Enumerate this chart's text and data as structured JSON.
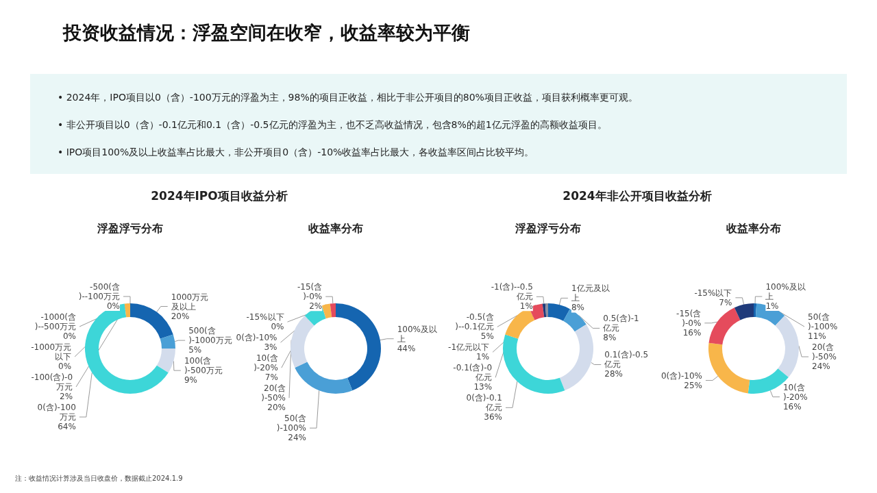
{
  "chart_data": [
    {
      "type": "other",
      "title": "投资收益情况：浮盈空间在收窄，收益率较为平衡",
      "annotations": [
        "• 2024年，IPO项目以0（含）-100万元的浮盈为主，98%的项目正收益，相比于非公开项目的80%项目正收益，项目获利概率更可观。",
        "• 非公开项目以0（含）-0.1亿元和0.1（含）-0.5亿元的浮盈为主，也不乏高收益情况，包含8%的超1亿元浮盈的高额收益项目。",
        "• IPO项目100%及以上收益率占比最大，非公开项目0（含）-10%收益率占比最大，各收益率区间占比较平均。",
        "注：收益情况计算涉及当日收盘价，数据截止2024.1.9"
      ]
    },
    {
      "type": "donut",
      "subtitle": "2024年IPO项目收益分析",
      "title": "浮盈浮亏分布",
      "categories": [
        "1000万元及以上",
        "500(含)-1000万元",
        "100(含)-500万元",
        "0(含)-100万元",
        "-100(含)-0万元",
        "-500(含)--100万元",
        "-1000(含)--500万元",
        "-1000万元以下"
      ],
      "values": [
        20,
        5,
        9,
        64,
        2,
        0,
        0,
        0
      ],
      "value_labels": [
        "20%",
        "5%",
        "9%",
        "64%",
        "2%",
        "0%",
        "0%",
        "0%"
      ],
      "colors": [
        "#1565b0",
        "#4a9fd6",
        "#d3dcec",
        "#3dd6d8",
        "#f8b64a",
        "#e54b5c",
        "#1f3a7a",
        "#8a8fa0"
      ]
    },
    {
      "type": "donut",
      "title": "收益率分布",
      "categories": [
        "100%及以上",
        "50(含)-100%",
        "20(含)-50%",
        "10(含)-20%",
        "0(含)-10%",
        "-15(含)-0%",
        "-15%以下"
      ],
      "values": [
        44,
        24,
        20,
        7,
        3,
        2,
        0
      ],
      "value_labels": [
        "44%",
        "24%",
        "20%",
        "7%",
        "3%",
        "2%",
        "0%"
      ],
      "colors": [
        "#1565b0",
        "#4a9fd6",
        "#d3dcec",
        "#3dd6d8",
        "#f8b64a",
        "#e54b5c",
        "#1f3a7a"
      ]
    },
    {
      "type": "donut",
      "subtitle": "2024年非公开项目收益分析",
      "title": "浮盈浮亏分布",
      "categories": [
        "1亿元及以上",
        "0.5(含)-1亿元",
        "0.1(含)-0.5亿元",
        "0(含)-0.1亿元",
        "-0.1(含)-0亿元",
        "-0.5(含)--0.1亿元",
        "-1(含)--0.5亿元",
        "-1亿元以下"
      ],
      "values": [
        8,
        8,
        28,
        36,
        13,
        5,
        1,
        1
      ],
      "value_labels": [
        "8%",
        "8%",
        "28%",
        "36%",
        "13%",
        "5%",
        "1%",
        "1%"
      ],
      "colors": [
        "#1565b0",
        "#4a9fd6",
        "#d3dcec",
        "#3dd6d8",
        "#f8b64a",
        "#e54b5c",
        "#1f3a7a",
        "#8a8fa0"
      ]
    },
    {
      "type": "donut",
      "title": "收益率分布",
      "categories": [
        "100%及以上",
        "50(含)-100%",
        "20(含)-50%",
        "10(含)-20%",
        "0(含)-10%",
        "-15(含)-0%",
        "-15%以下"
      ],
      "values": [
        1,
        11,
        24,
        16,
        25,
        16,
        7
      ],
      "value_labels": [
        "1%",
        "11%",
        "24%",
        "16%",
        "25%",
        "16%",
        "7%"
      ],
      "colors": [
        "#1565b0",
        "#4a9fd6",
        "#d3dcec",
        "#3dd6d8",
        "#f8b64a",
        "#e54b5c",
        "#1f3a7a"
      ]
    }
  ]
}
